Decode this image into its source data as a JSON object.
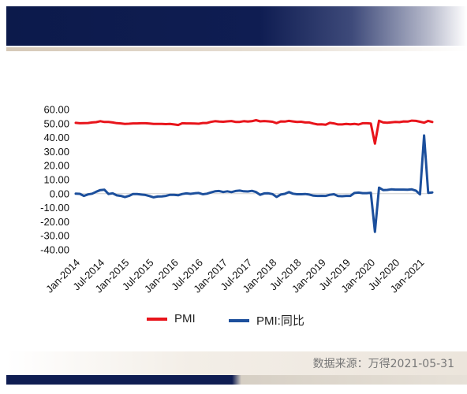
{
  "source_text": "数据来源：万得2021-05-31",
  "colors": {
    "header": "#0f1d52",
    "pmi": "#e8141b",
    "yoy": "#1c4f9c"
  },
  "chart_data": {
    "type": "line",
    "ylim": [
      -40,
      60
    ],
    "yticks": [
      "60.00",
      "50.00",
      "40.00",
      "30.00",
      "20.00",
      "10.00",
      "0.00",
      "-10.00",
      "-20.00",
      "-30.00",
      "-40.00"
    ],
    "x_labels": [
      "Jan-2014",
      "Jul-2014",
      "Jan-2015",
      "Jul-2015",
      "Jan-2016",
      "Jul-2016",
      "Jan-2017",
      "Jul-2017",
      "Jan-2018",
      "Jul-2018",
      "Jan-2019",
      "Jul-2019",
      "Jan-2020",
      "Jul-2020",
      "Jan-2021"
    ],
    "x_start": "Jan-2014",
    "x_end": "Apr-2021",
    "legend_position": "bottom",
    "series": [
      {
        "name": "PMI",
        "color": "#e8141b",
        "values": [
          50.5,
          50.2,
          50.3,
          50.4,
          50.8,
          51.0,
          51.7,
          51.1,
          51.1,
          50.8,
          50.3,
          50.1,
          49.8,
          49.9,
          50.1,
          50.1,
          50.2,
          50.2,
          50.0,
          49.7,
          49.8,
          49.8,
          49.6,
          49.7,
          49.4,
          49.0,
          50.2,
          50.1,
          50.1,
          50.0,
          49.9,
          50.4,
          50.4,
          51.2,
          51.7,
          51.4,
          51.3,
          51.6,
          51.8,
          51.2,
          51.2,
          51.7,
          51.4,
          51.7,
          52.4,
          51.6,
          51.8,
          51.6,
          51.3,
          50.3,
          51.5,
          51.4,
          51.9,
          51.5,
          51.2,
          51.3,
          50.8,
          50.8,
          50.0,
          49.4,
          49.5,
          49.2,
          50.5,
          50.1,
          49.4,
          49.4,
          49.7,
          49.5,
          49.8,
          49.3,
          50.2,
          50.2,
          50.0,
          35.7,
          52.0,
          50.8,
          50.6,
          50.9,
          51.1,
          51.0,
          51.5,
          51.4,
          52.1,
          51.9,
          51.3,
          50.6,
          51.9,
          51.1
        ]
      },
      {
        "name": "PMI:同比",
        "color": "#1c4f9c",
        "values": [
          0.0,
          -0.1,
          -1.6,
          -0.5,
          0.0,
          1.4,
          2.6,
          2.8,
          -0.2,
          0.3,
          -1.2,
          -1.6,
          -2.4,
          -1.6,
          -0.2,
          -0.3,
          -0.6,
          -0.9,
          -1.7,
          -2.6,
          -2.0,
          -1.9,
          -1.6,
          -0.8,
          -0.8,
          -1.1,
          -0.2,
          0.2,
          -0.1,
          0.3,
          0.5,
          -0.4,
          0.0,
          0.9,
          1.7,
          1.9,
          1.2,
          1.7,
          1.1,
          1.9,
          2.2,
          1.7,
          1.6,
          2.0,
          1.2,
          -0.8,
          0.2,
          0.3,
          -0.3,
          -2.3,
          -0.6,
          -0.1,
          1.2,
          0.0,
          -0.4,
          -0.4,
          -0.2,
          -0.6,
          -1.4,
          -1.6,
          -1.5,
          -1.6,
          -0.8,
          -0.4,
          -1.7,
          -1.8,
          -1.6,
          -1.6,
          0.5,
          0.8,
          0.4,
          0.4,
          0.7,
          -27.2,
          4.3,
          2.6,
          2.7,
          3.1,
          2.9,
          2.9,
          2.9,
          2.8,
          3.1,
          2.2,
          -0.5,
          41.5,
          0.6,
          0.9
        ]
      }
    ]
  }
}
